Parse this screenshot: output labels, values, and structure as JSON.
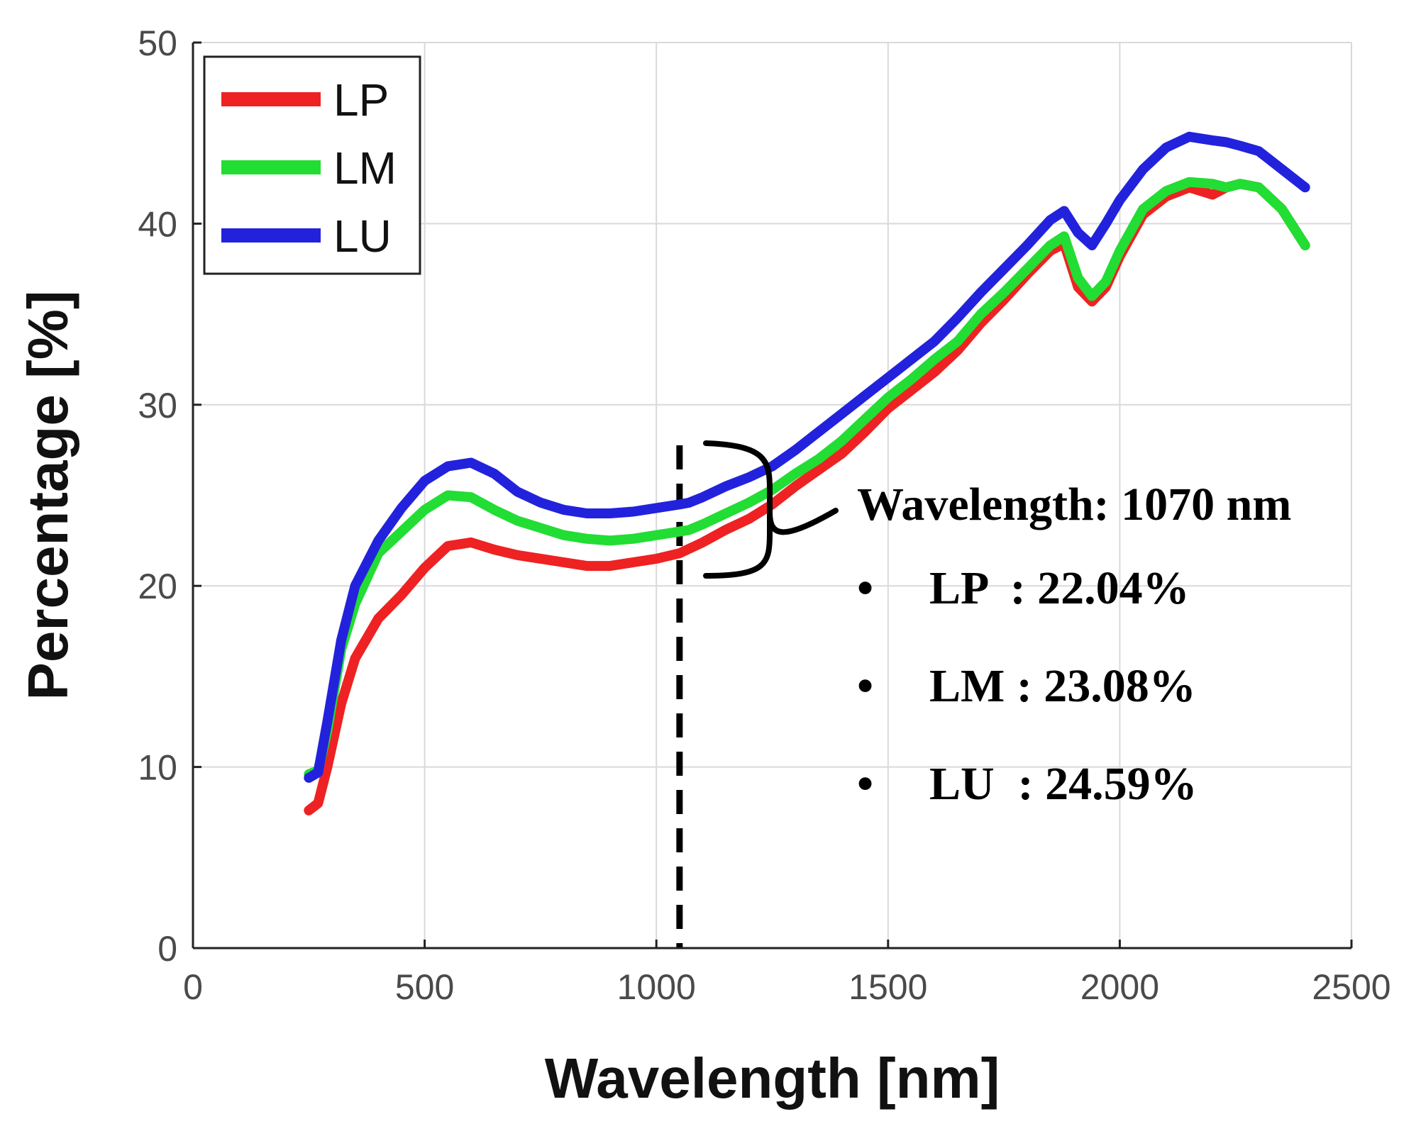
{
  "chart_data": {
    "type": "line",
    "title": "",
    "xlabel": "Wavelength [nm]",
    "ylabel": "Percentage [%]",
    "xlim": [
      0,
      2500
    ],
    "ylim": [
      0,
      50
    ],
    "xticks": [
      0,
      500,
      1000,
      1500,
      2000,
      2500
    ],
    "yticks": [
      0,
      10,
      20,
      30,
      40,
      50
    ],
    "grid": true,
    "legend_position": "top-left",
    "series": [
      {
        "name": "LP",
        "color": "#ee2222",
        "x": [
          250,
          270,
          290,
          320,
          350,
          400,
          450,
          500,
          550,
          600,
          650,
          700,
          750,
          800,
          850,
          900,
          950,
          1000,
          1050,
          1070,
          1100,
          1150,
          1200,
          1250,
          1300,
          1350,
          1400,
          1450,
          1500,
          1550,
          1600,
          1650,
          1700,
          1750,
          1800,
          1850,
          1880,
          1910,
          1940,
          1970,
          2000,
          2050,
          2100,
          2150,
          2200,
          2230,
          2260,
          2300,
          2350,
          2400
        ],
        "y": [
          7.6,
          8.0,
          10.0,
          13.5,
          16.0,
          18.2,
          19.5,
          21.0,
          22.2,
          22.4,
          22.0,
          21.7,
          21.5,
          21.3,
          21.1,
          21.1,
          21.3,
          21.5,
          21.8,
          22.04,
          22.4,
          23.1,
          23.7,
          24.5,
          25.5,
          26.4,
          27.3,
          28.5,
          29.8,
          30.8,
          31.8,
          33.0,
          34.5,
          35.8,
          37.2,
          38.5,
          38.9,
          36.5,
          35.7,
          36.5,
          38.2,
          40.5,
          41.5,
          42.0,
          41.6,
          42.0,
          42.2,
          42.0,
          40.8,
          38.8
        ]
      },
      {
        "name": "LM",
        "color": "#22dd33",
        "x": [
          250,
          270,
          290,
          320,
          350,
          400,
          450,
          500,
          550,
          600,
          650,
          700,
          750,
          800,
          850,
          900,
          950,
          1000,
          1050,
          1070,
          1100,
          1150,
          1200,
          1250,
          1300,
          1350,
          1400,
          1450,
          1500,
          1550,
          1600,
          1650,
          1700,
          1750,
          1800,
          1850,
          1880,
          1910,
          1940,
          1970,
          2000,
          2050,
          2100,
          2150,
          2200,
          2230,
          2260,
          2300,
          2350,
          2400
        ],
        "y": [
          9.6,
          9.8,
          12.0,
          16.5,
          19.0,
          21.8,
          23.0,
          24.2,
          25.0,
          24.9,
          24.2,
          23.6,
          23.2,
          22.8,
          22.6,
          22.5,
          22.6,
          22.8,
          23.0,
          23.08,
          23.4,
          24.0,
          24.6,
          25.3,
          26.2,
          27.0,
          28.0,
          29.2,
          30.4,
          31.4,
          32.5,
          33.5,
          35.0,
          36.2,
          37.5,
          38.8,
          39.3,
          37.0,
          36.0,
          36.8,
          38.5,
          40.8,
          41.8,
          42.3,
          42.2,
          42.0,
          42.2,
          42.0,
          40.8,
          38.8
        ]
      },
      {
        "name": "LU",
        "color": "#2222dd",
        "x": [
          250,
          270,
          290,
          320,
          350,
          400,
          450,
          500,
          550,
          600,
          650,
          700,
          750,
          800,
          850,
          900,
          950,
          1000,
          1050,
          1070,
          1100,
          1150,
          1200,
          1250,
          1300,
          1350,
          1400,
          1450,
          1500,
          1550,
          1600,
          1650,
          1700,
          1750,
          1800,
          1850,
          1880,
          1910,
          1940,
          1970,
          2000,
          2050,
          2100,
          2150,
          2200,
          2230,
          2260,
          2300,
          2350,
          2400
        ],
        "y": [
          9.4,
          9.7,
          12.5,
          17.0,
          20.0,
          22.5,
          24.3,
          25.8,
          26.6,
          26.8,
          26.2,
          25.2,
          24.6,
          24.2,
          24.0,
          24.0,
          24.1,
          24.3,
          24.5,
          24.59,
          24.9,
          25.5,
          26.0,
          26.6,
          27.5,
          28.5,
          29.5,
          30.5,
          31.5,
          32.5,
          33.5,
          34.8,
          36.2,
          37.5,
          38.8,
          40.2,
          40.7,
          39.5,
          38.8,
          40.0,
          41.3,
          43.0,
          44.2,
          44.8,
          44.6,
          44.5,
          44.3,
          44.0,
          43.0,
          42.0
        ]
      }
    ],
    "reference_line": {
      "x": 1050,
      "style": "dashed"
    },
    "annotations": {
      "title": "Wavelength: 1070 nm",
      "items": [
        {
          "bullet": "•",
          "text": "LP  : 22.04%"
        },
        {
          "bullet": "•",
          "text": "LM : 23.08%"
        },
        {
          "bullet": "•",
          "text": "LU  : 24.59%"
        }
      ]
    }
  }
}
